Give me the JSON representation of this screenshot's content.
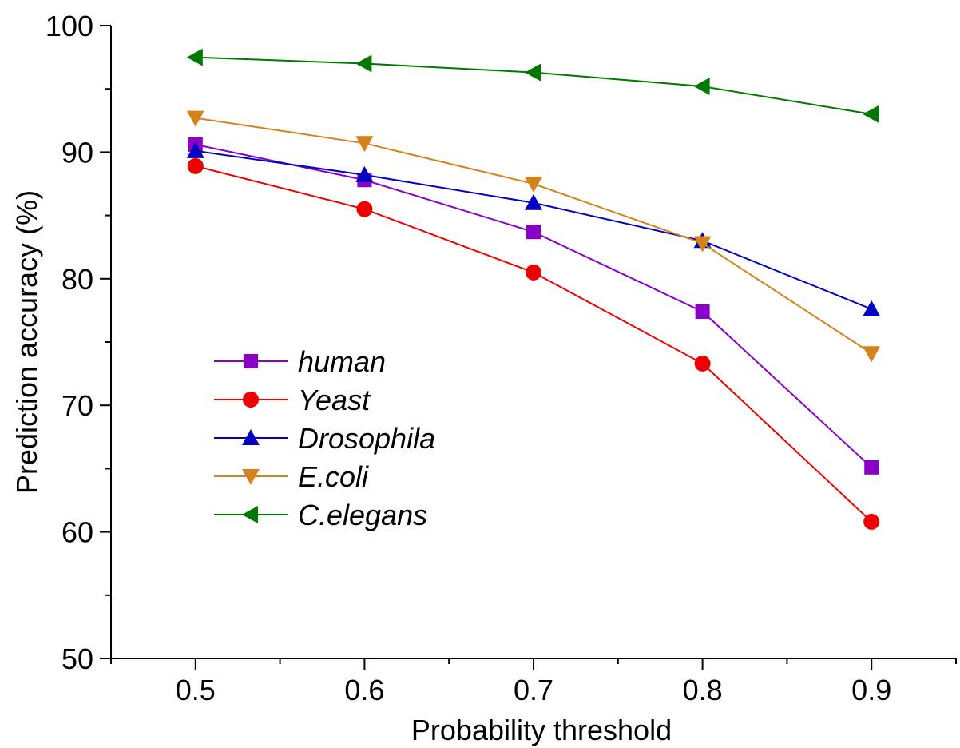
{
  "chart_data": {
    "type": "line",
    "title": "",
    "xlabel": "Probability threshold",
    "ylabel": "Prediction accuracy (%)",
    "xlim": [
      0.45,
      0.95
    ],
    "ylim": [
      50,
      100
    ],
    "x": [
      0.5,
      0.6,
      0.7,
      0.8,
      0.9
    ],
    "x_ticks": [
      "0.5",
      "0.6",
      "0.7",
      "0.8",
      "0.9"
    ],
    "y_ticks": [
      "50",
      "60",
      "70",
      "80",
      "90",
      "100"
    ],
    "grid": false,
    "legend_position": "lower-left",
    "series": [
      {
        "name": "human",
        "color": "#8a00c8",
        "marker": "square",
        "values": [
          90.6,
          87.8,
          83.7,
          77.4,
          65.1
        ]
      },
      {
        "name": "Yeast",
        "color": "#ee0000",
        "marker": "circle",
        "values": [
          88.9,
          85.5,
          80.5,
          73.3,
          60.8
        ]
      },
      {
        "name": "Drosophila",
        "color": "#0000c0",
        "marker": "triangle-up",
        "values": [
          90.1,
          88.2,
          86.0,
          83.0,
          77.6
        ]
      },
      {
        "name": "E.coli",
        "color": "#d4821a",
        "marker": "triangle-down",
        "values": [
          92.7,
          90.7,
          87.5,
          82.8,
          74.1
        ]
      },
      {
        "name": "C.elegans",
        "color": "#007800",
        "marker": "triangle-left",
        "values": [
          97.5,
          97.0,
          96.3,
          95.2,
          93.0
        ]
      }
    ]
  }
}
